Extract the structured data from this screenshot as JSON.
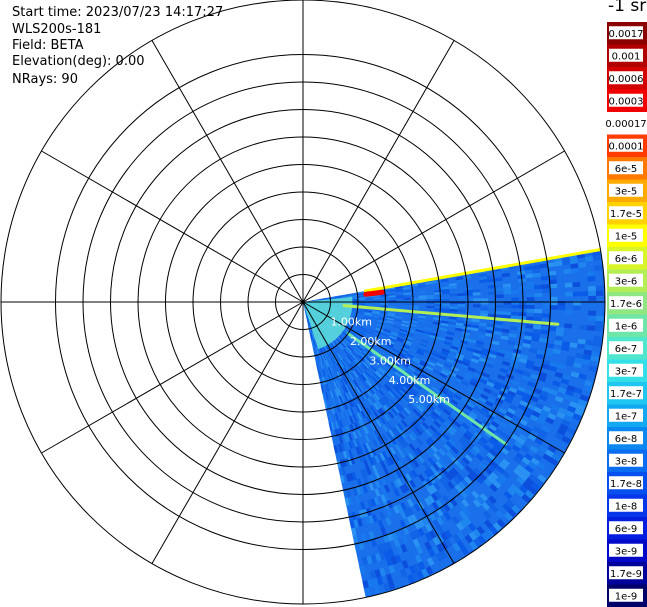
{
  "header": {
    "start_time": "Start time: 2023/07/23 14:17:27",
    "instrument": "WLS200s-181",
    "field": "Field: BETA",
    "elevation": "Elevation(deg): 0.00",
    "nrays": "NRays: 90"
  },
  "colorbar": {
    "title": "-1 sr",
    "bins": [
      {
        "label": "0.0017",
        "color": "#8b0000"
      },
      {
        "label": "0.001",
        "color": "#b00000"
      },
      {
        "label": "0.0006",
        "color": "#d40000"
      },
      {
        "label": "0.0003",
        "color": "#f00000"
      },
      {
        "label": "0.00017",
        "color": "#ffffff"
      },
      {
        "label": "0.0001",
        "color": "#ff3c00"
      },
      {
        "label": "6e-5",
        "color": "#ff7800"
      },
      {
        "label": "3e-5",
        "color": "#ffaa00"
      },
      {
        "label": "1.7e-5",
        "color": "#ffd200"
      },
      {
        "label": "1e-5",
        "color": "#ffff00"
      },
      {
        "label": "6e-6",
        "color": "#d8f52a"
      },
      {
        "label": "3e-6",
        "color": "#b4ee55"
      },
      {
        "label": "1.7e-6",
        "color": "#90e680"
      },
      {
        "label": "1e-6",
        "color": "#6ee6a8"
      },
      {
        "label": "6e-7",
        "color": "#4ee6cc"
      },
      {
        "label": "3e-7",
        "color": "#34e0e8"
      },
      {
        "label": "1.7e-7",
        "color": "#1ec6f0"
      },
      {
        "label": "1e-7",
        "color": "#12a8f2"
      },
      {
        "label": "6e-8",
        "color": "#0a88f0"
      },
      {
        "label": "3e-8",
        "color": "#0a6cf0"
      },
      {
        "label": "1.7e-8",
        "color": "#0850ee"
      },
      {
        "label": "1e-8",
        "color": "#0636ea"
      },
      {
        "label": "6e-9",
        "color": "#041ee0"
      },
      {
        "label": "3e-9",
        "color": "#0208c8"
      },
      {
        "label": "1.7e-9",
        "color": "#00009a"
      },
      {
        "label": "1e-9",
        "color": "#00006a"
      }
    ]
  },
  "chart_data": {
    "type": "heatmap",
    "projection": "polar (PPI)",
    "field": "BETA",
    "elevation_deg": 0.0,
    "nrays": 90,
    "range_rings_km": [
      1,
      2,
      3,
      4,
      5,
      6,
      7,
      8,
      9
    ],
    "ring_labels": [
      "1.00km",
      "2.00km",
      "3.00km",
      "4.00km",
      "5.00km"
    ],
    "spoke_angles_deg": [
      0,
      30,
      60,
      90,
      120,
      150,
      180,
      210,
      240,
      270,
      300,
      330
    ],
    "scan_sector_deg": [
      80,
      168
    ],
    "max_range_km": 11,
    "background_level": "1e-8 to 1e-7",
    "features": [
      {
        "azimuth_deg": 80,
        "range_km": [
          2.3,
          11
        ],
        "level": "1e-5",
        "description": "strong return along northern sector edge"
      },
      {
        "azimuth_deg": 95,
        "range_km": [
          1.5,
          9.3
        ],
        "level": "3e-6",
        "description": "secondary bright line"
      },
      {
        "azimuth_deg": 125,
        "range_km": [
          2,
          9
        ],
        "level": "1e-6",
        "description": "diagonal line"
      },
      {
        "azimuth_deg": 83,
        "range_km": [
          2.3,
          2.9
        ],
        "level": "0.0003",
        "description": "small red target near northern edge"
      }
    ]
  }
}
